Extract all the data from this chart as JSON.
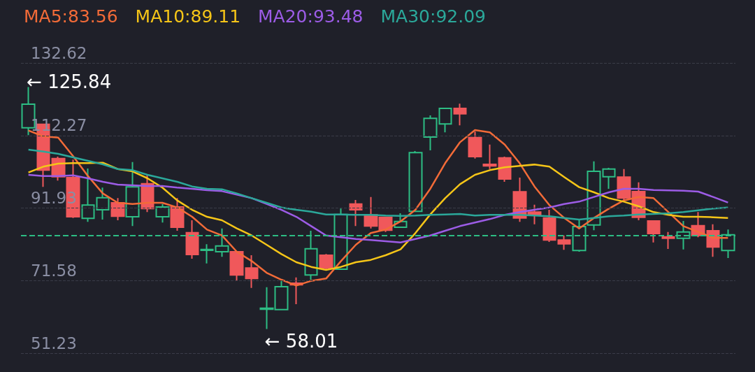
{
  "chart_data": {
    "type": "candlestick",
    "categories": [
      null,
      null,
      null,
      null,
      null,
      null,
      null,
      null,
      null,
      null,
      null,
      null,
      null,
      null,
      null,
      null,
      null,
      null,
      null,
      null,
      null,
      null,
      null,
      null,
      null,
      null,
      null,
      null,
      null,
      null,
      null,
      null,
      null,
      null,
      null,
      null,
      null,
      null,
      null,
      null,
      null,
      null,
      null,
      null,
      null,
      null,
      null,
      null
    ],
    "ohlc": [
      [
        114.45,
        125.84,
        112.35,
        121.05
      ],
      [
        115.43,
        115.6,
        97.84,
        102.55
      ],
      [
        105.82,
        106.34,
        99.61,
        100.72
      ],
      [
        100.46,
        105.49,
        89.15,
        89.47
      ],
      [
        89.02,
        103.01,
        88.04,
        92.74
      ],
      [
        91.43,
        97.65,
        88.69,
        94.84
      ],
      [
        93.4,
        94.7,
        88.49,
        89.6
      ],
      [
        89.47,
        104.84,
        86.86,
        97.84
      ],
      [
        98.76,
        101.24,
        90.78,
        91.76
      ],
      [
        89.47,
        93.07,
        87.84,
        92.22
      ],
      [
        92.22,
        94.7,
        85.55,
        86.53
      ],
      [
        85.03,
        88.49,
        77.71,
        78.88
      ],
      [
        80.06,
        81.76,
        76.4,
        80.32
      ],
      [
        79.67,
        86.2,
        78.23,
        81.3
      ],
      [
        79.67,
        79.8,
        71.5,
        73.13
      ],
      [
        75.09,
        78.69,
        69.54,
        72.15
      ],
      [
        63.52,
        69.73,
        58.01,
        63.85
      ],
      [
        63.45,
        71.5,
        63.4,
        69.86
      ],
      [
        70.84,
        72.48,
        64.96,
        70.38
      ],
      [
        73.13,
        85.55,
        71.82,
        80.52
      ],
      [
        78.69,
        79.01,
        74.44,
        75.09
      ],
      [
        74.76,
        91.76,
        74.7,
        90.13
      ],
      [
        93.07,
        94.18,
        86.86,
        91.43
      ],
      [
        90.0,
        95.03,
        86.2,
        86.86
      ],
      [
        89.34,
        89.4,
        85.22,
        85.68
      ],
      [
        86.53,
        90.45,
        86.5,
        88.17
      ],
      [
        90.98,
        107.91,
        90.9,
        107.45
      ],
      [
        111.83,
        117.91,
        108.1,
        117.06
      ],
      [
        115.49,
        120.0,
        113.14,
        119.87
      ],
      [
        119.87,
        121.18,
        115.1,
        118.37
      ],
      [
        111.7,
        113.33,
        105.82,
        106.34
      ],
      [
        104.18,
        109.74,
        102.87,
        103.72
      ],
      [
        106.01,
        106.34,
        99.28,
        100.06
      ],
      [
        96.47,
        100.46,
        88.04,
        89.15
      ],
      [
        90.78,
        92.87,
        87.38,
        90.0
      ],
      [
        89.15,
        91.43,
        82.41,
        82.94
      ],
      [
        82.94,
        84.24,
        80.19,
        81.89
      ],
      [
        79.99,
        88.49,
        79.67,
        86.73
      ],
      [
        87.19,
        105.03,
        85.68,
        102.22
      ],
      [
        100.72,
        103.2,
        97.32,
        102.87
      ],
      [
        100.59,
        102.87,
        93.72,
        94.7
      ],
      [
        96.53,
        99.15,
        88.49,
        89.34
      ],
      [
        88.3,
        88.4,
        82.28,
        84.77
      ],
      [
        83.85,
        85.22,
        80.45,
        83.46
      ],
      [
        83.46,
        88.3,
        80.32,
        85.22
      ],
      [
        86.99,
        90.78,
        83.72,
        84.24
      ],
      [
        85.55,
        87.38,
        78.23,
        80.97
      ],
      [
        79.99,
        85.88,
        77.9,
        84.44
      ]
    ],
    "series": [
      {
        "type": "line",
        "name": "MA5:83.56",
        "color": "#f26b38",
        "values": [
          113.66,
          112.03,
          111.7,
          106.47,
          100.91,
          96.01,
          93.4,
          93.07,
          93.4,
          93.4,
          92.09,
          89.47,
          85.88,
          84.24,
          79.67,
          77.05,
          73.78,
          71.82,
          70.19,
          71.5,
          72.15,
          77.05,
          81.63,
          84.9,
          85.88,
          88.17,
          91.43,
          97.32,
          104.51,
          110.39,
          113.79,
          113.14,
          109.74,
          104.51,
          97.97,
          92.74,
          89.15,
          86.2,
          89.15,
          91.76,
          94.05,
          95.03,
          94.7,
          90.78,
          86.86,
          85.22,
          83.59,
          83.56
        ]
      },
      {
        "type": "line",
        "name": "MA10:89.11",
        "color": "#f5c518",
        "values": [
          101.89,
          103.53,
          104.38,
          104.51,
          104.51,
          104.64,
          102.87,
          102.22,
          100.26,
          97.65,
          94.05,
          91.43,
          89.47,
          88.49,
          86.2,
          84.24,
          81.63,
          79.01,
          76.73,
          75.42,
          74.57,
          75.42,
          76.73,
          77.38,
          78.69,
          80.32,
          84.9,
          90.13,
          94.7,
          98.62,
          101.24,
          102.55,
          103.33,
          103.72,
          104.12,
          103.53,
          100.59,
          97.78,
          96.34,
          94.7,
          93.72,
          92.41,
          90.78,
          90.0,
          89.47,
          89.47,
          89.34,
          89.11
        ]
      },
      {
        "type": "line",
        "name": "MA20:93.48",
        "color": "#9c5ce6",
        "values": [
          101.24,
          100.91,
          100.91,
          101.11,
          100.26,
          99.28,
          98.49,
          98.3,
          98.1,
          98.1,
          97.65,
          97.32,
          96.93,
          96.66,
          95.68,
          94.7,
          93.07,
          91.43,
          89.47,
          86.86,
          84.24,
          83.72,
          83.26,
          82.94,
          82.61,
          82.28,
          83.26,
          84.24,
          85.55,
          86.86,
          87.84,
          88.82,
          90.0,
          90.78,
          91.43,
          92.09,
          93.07,
          93.72,
          95.03,
          96.34,
          97.32,
          97.32,
          96.99,
          96.86,
          96.79,
          96.53,
          95.03,
          93.48
        ]
      },
      {
        "type": "line",
        "name": "MA30:92.09",
        "color": "#2ba89a",
        "values": [
          108.3,
          107.78,
          107.12,
          106.14,
          105.16,
          104.18,
          102.87,
          102.55,
          101.24,
          100.26,
          99.28,
          97.97,
          97.32,
          97.19,
          96.01,
          94.7,
          93.4,
          92.09,
          91.43,
          90.91,
          90.13,
          90.13,
          90.0,
          90.0,
          89.8,
          89.73,
          89.8,
          90.0,
          90.13,
          90.26,
          89.8,
          90.0,
          90.0,
          90.0,
          89.8,
          89.6,
          89.15,
          88.69,
          89.15,
          89.6,
          89.8,
          90.13,
          90.26,
          90.45,
          90.78,
          91.3,
          91.76,
          92.09
        ]
      }
    ],
    "ylim": [
      51.23,
      132.62
    ],
    "yticks": [
      51.23,
      71.58,
      91.93,
      112.27,
      132.62
    ],
    "grid": "y",
    "legend": "top left",
    "marker": "none",
    "line_style": "solid",
    "ref_lines": [
      {
        "axis": "y",
        "value": 84.3,
        "color": "#2dbd84",
        "line_style": "dashed"
      }
    ],
    "annotations": [
      "← 125.84",
      "← 58.01"
    ]
  }
}
